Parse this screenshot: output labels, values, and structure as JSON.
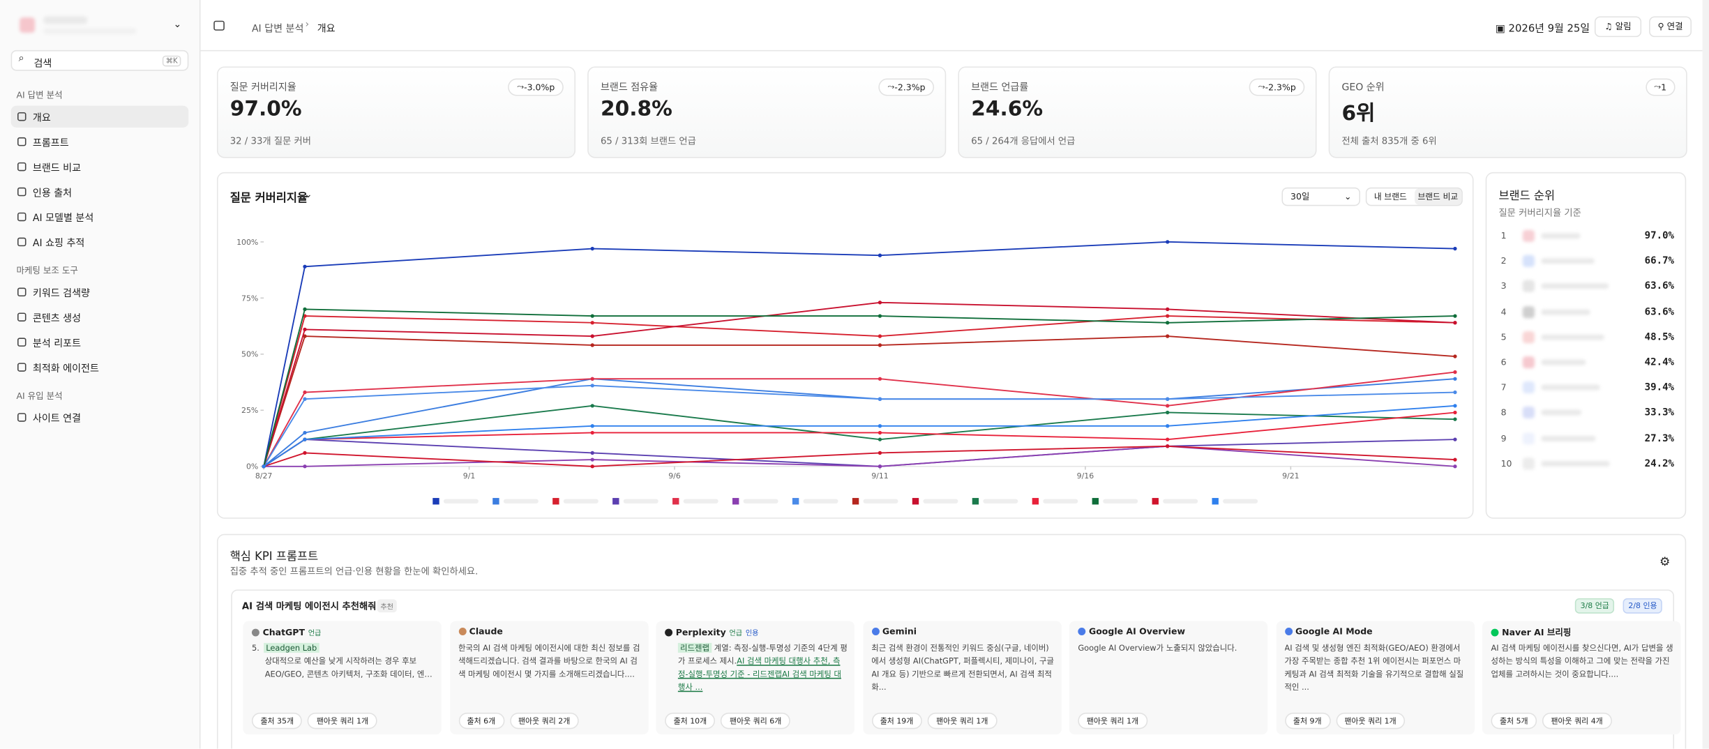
{
  "sidebar": {
    "search": "검색",
    "shortcut": "⌘K",
    "groups": [
      {
        "title": "AI 답변 분석",
        "items": [
          "개요",
          "프롬프트",
          "브랜드 비교",
          "인용 출처",
          "AI 모델별 분석",
          "AI 쇼핑 추적"
        ]
      },
      {
        "title": "마케팅 보조 도구",
        "items": [
          "키워드 검색량",
          "콘텐츠 생성",
          "분석 리포트",
          "최적화 에이전트"
        ]
      },
      {
        "title": "AI 유입 분석",
        "items": [
          "사이트 연결"
        ]
      }
    ]
  },
  "header": {
    "breadcrumb": [
      "AI 답변 분석",
      "개요"
    ],
    "date": "2026년 9월 25일",
    "buttons": [
      "알림",
      "연결"
    ]
  },
  "kpis": [
    {
      "title": "질문 커버리지율",
      "value": "97.0%",
      "change": "-3.0%p",
      "sub": "32 / 33개 질문 커버"
    },
    {
      "title": "브랜드 점유율",
      "value": "20.8%",
      "change": "-2.3%p",
      "sub": "65 / 313회 브랜드 언급"
    },
    {
      "title": "브랜드 언급률",
      "value": "24.6%",
      "change": "-2.3%p",
      "sub": "65 / 264개 응답에서 언급"
    },
    {
      "title": "GEO 순위",
      "value": "6위",
      "change": "1",
      "sub": "전체 출처 835개 중 6위"
    }
  ],
  "chart_panel": {
    "range": "30일",
    "toggles": [
      "내 브랜드",
      "브랜드 비교"
    ]
  },
  "chart_data": {
    "type": "line",
    "title": "질문 커버리지율",
    "x": [
      0,
      1,
      8,
      15,
      22,
      29
    ],
    "xlim": [
      0,
      29
    ],
    "xticks": [
      {
        "value": 0,
        "label": "8/27"
      },
      {
        "value": 5,
        "label": "9/1"
      },
      {
        "value": 10,
        "label": "9/6"
      },
      {
        "value": 15,
        "label": "9/11"
      },
      {
        "value": 20,
        "label": "9/16"
      },
      {
        "value": 25,
        "label": "9/21"
      }
    ],
    "ylim": [
      0,
      100
    ],
    "yticks": [
      {
        "value": 0,
        "label": "0%"
      },
      {
        "value": 25,
        "label": "25%"
      },
      {
        "value": 50,
        "label": "50%"
      },
      {
        "value": 75,
        "label": "75%"
      },
      {
        "value": 100,
        "label": "100%"
      }
    ],
    "grid": false,
    "series": [
      {
        "color": "#1a3cb8",
        "values": [
          0,
          89,
          97,
          94,
          100,
          97
        ]
      },
      {
        "color": "#3b7de0",
        "values": [
          0,
          15,
          39,
          30,
          30,
          39
        ]
      },
      {
        "color": "#d6202e",
        "values": [
          0,
          67,
          64,
          58,
          67,
          64
        ]
      },
      {
        "color": "#5b3fb0",
        "values": [
          0,
          12,
          6,
          0,
          9,
          12
        ]
      },
      {
        "color": "#e0304a",
        "values": [
          0,
          33,
          39,
          39,
          27,
          42
        ]
      },
      {
        "color": "#8a3fb0",
        "values": [
          0,
          0,
          3,
          0,
          9,
          0
        ]
      },
      {
        "color": "#4a8ae8",
        "values": [
          0,
          30,
          36,
          30,
          30,
          33
        ]
      },
      {
        "color": "#b5261e",
        "values": [
          0,
          58,
          54,
          54,
          58,
          49
        ]
      },
      {
        "color": "#c8102e",
        "values": [
          0,
          61,
          58,
          73,
          70,
          64
        ]
      },
      {
        "color": "#1a7a4c",
        "values": [
          0,
          12,
          27,
          12,
          24,
          21
        ]
      },
      {
        "color": "#e8213a",
        "values": [
          0,
          12,
          15,
          15,
          12,
          24
        ]
      },
      {
        "color": "#0f6e3a",
        "values": [
          0,
          70,
          67,
          67,
          64,
          67
        ]
      },
      {
        "color": "#d0142c",
        "values": [
          0,
          6,
          0,
          6,
          9,
          3
        ]
      },
      {
        "color": "#2f80ed",
        "values": [
          0,
          12,
          18,
          18,
          18,
          27
        ]
      }
    ]
  },
  "ranking": {
    "title": "브랜드 순위",
    "subtitle": "질문 커버리지율 기준",
    "rows": [
      {
        "rank": "1",
        "value": "97.0%"
      },
      {
        "rank": "2",
        "value": "66.7%"
      },
      {
        "rank": "3",
        "value": "63.6%"
      },
      {
        "rank": "4",
        "value": "63.6%"
      },
      {
        "rank": "5",
        "value": "48.5%"
      },
      {
        "rank": "6",
        "value": "42.4%"
      },
      {
        "rank": "7",
        "value": "39.4%"
      },
      {
        "rank": "8",
        "value": "33.3%"
      },
      {
        "rank": "9",
        "value": "27.3%"
      },
      {
        "rank": "10",
        "value": "24.2%"
      }
    ]
  },
  "kpi_prompts": {
    "title": "핵심 KPI 프롬프트",
    "subtitle": "집중 추적 중인 프롬프트의 언급·인용 현황을 한눈에 확인하세요.",
    "prompt": {
      "text": "AI 검색 마케팅 에이전시 추천해줘",
      "tag": "추천",
      "mentions": "3/8 언급",
      "citations": "2/8 인용"
    },
    "engines": [
      {
        "name": "ChatGPT",
        "tags": [
          "언급"
        ],
        "item": {
          "num": "5.",
          "highlight": "Leadgen Lab"
        },
        "bullets": [
          "상대적으로 예산을 낮게 시작하려는 경우 후보",
          "AEO/GEO, 콘텐츠 아키텍처, 구조화 데이터, 엔티..."
        ],
        "chips": [
          "출처 35개",
          "팬아웃 쿼리 1개"
        ]
      },
      {
        "name": "Claude",
        "tags": [],
        "paragraph": "한국의 AI 검색 마케팅 에이전시에 대한 최신 정보를 검색해드리겠습니다. 검색 결과를 바탕으로 한국의 AI 검색 마케팅 에이전시 몇 가지를 소개해드리겠습니다....",
        "chips": [
          "출처 6개",
          "팬아웃 쿼리 2개"
        ]
      },
      {
        "name": "Perplexity",
        "tags": [
          "언급",
          "인용"
        ],
        "cite": {
          "highlight": "리드젠랩",
          "text": " 계열: 측정-실행-투명성 기준의 4단계 평가 프로세스 제시.",
          "link": "AI 검색 마케팅 대행사 추천, 측정-실행-투명성 기준 - 리드젠랩AI 검색 마케팅 대행사 ..."
        },
        "chips": [
          "출처 10개",
          "팬아웃 쿼리 6개"
        ]
      },
      {
        "name": "Gemini",
        "tags": [],
        "paragraph": "최근 검색 환경이 전통적인 키워드 중심(구글, 네이버)에서 생성형 AI(ChatGPT, 퍼플렉시티, 제미나이, 구글 AI 개요 등) 기반으로 빠르게 전환되면서, AI 검색 최적화...",
        "chips": [
          "출처 19개",
          "팬아웃 쿼리 1개"
        ]
      },
      {
        "name": "Google AI Overview",
        "tags": [],
        "paragraph": "Google AI Overview가 노출되지 않았습니다.",
        "chips": [
          "팬아웃 쿼리 1개"
        ]
      },
      {
        "name": "Google AI Mode",
        "tags": [],
        "paragraph": "AI 검색 및 생성형 엔진 최적화(GEO/AEO) 환경에서 가장 주목받는 종합 추천 1위 에이전시는 퍼포먼스 마케팅과 AI 검색 최적화 기술을 유기적으로 결합해 실질적인 ...",
        "chips": [
          "출처 9개",
          "팬아웃 쿼리 1개"
        ]
      },
      {
        "name": "Naver AI 브리핑",
        "tags": [],
        "paragraph": "AI 검색 마케팅 에이전시를 찾으신다면, AI가 답변을 생성하는 방식의 특성을 이해하고 그에 맞는 전략을 가진 업체를 고려하시는 것이 중요합니다....",
        "chips": [
          "출처 5개",
          "팬아웃 쿼리 4개"
        ]
      }
    ]
  }
}
